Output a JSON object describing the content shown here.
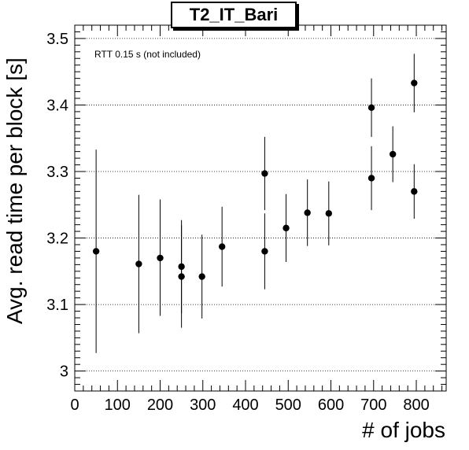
{
  "chart_data": {
    "type": "scatter",
    "title": "T2_IT_Bari",
    "xlabel": "# of jobs",
    "ylabel": "Avg. read time per block [s]",
    "annotation": "RTT 0.15 s (not included)",
    "xlim": [
      0,
      870
    ],
    "ylim": [
      2.97,
      3.52
    ],
    "x_ticks": [
      0,
      100,
      200,
      300,
      400,
      500,
      600,
      700,
      800
    ],
    "x_tick_labels": [
      "0",
      "100",
      "200",
      "300",
      "400",
      "500",
      "600",
      "700",
      "800"
    ],
    "y_ticks": [
      3.0,
      3.1,
      3.2,
      3.3,
      3.4,
      3.5
    ],
    "y_tick_labels": [
      "3",
      "3.1",
      "3.2",
      "3.3",
      "3.4",
      "3.5"
    ],
    "grid": "horizontal-dotted",
    "points": [
      {
        "x": 50,
        "y": 3.18,
        "err_low": 3.027,
        "err_high": 3.333
      },
      {
        "x": 150,
        "y": 3.161,
        "err_low": 3.057,
        "err_high": 3.265
      },
      {
        "x": 200,
        "y": 3.17,
        "err_low": 3.083,
        "err_high": 3.258
      },
      {
        "x": 250,
        "y": 3.157,
        "err_low": 3.087,
        "err_high": 3.227
      },
      {
        "x": 250,
        "y": 3.142,
        "err_low": 3.065,
        "err_high": 3.219
      },
      {
        "x": 298,
        "y": 3.142,
        "err_low": 3.079,
        "err_high": 3.205
      },
      {
        "x": 345,
        "y": 3.187,
        "err_low": 3.127,
        "err_high": 3.247
      },
      {
        "x": 445,
        "y": 3.297,
        "err_low": 3.242,
        "err_high": 3.352
      },
      {
        "x": 445,
        "y": 3.18,
        "err_low": 3.123,
        "err_high": 3.237
      },
      {
        "x": 495,
        "y": 3.215,
        "err_low": 3.164,
        "err_high": 3.266
      },
      {
        "x": 545,
        "y": 3.238,
        "err_low": 3.188,
        "err_high": 3.288
      },
      {
        "x": 595,
        "y": 3.237,
        "err_low": 3.189,
        "err_high": 3.285
      },
      {
        "x": 695,
        "y": 3.396,
        "err_low": 3.352,
        "err_high": 3.44
      },
      {
        "x": 695,
        "y": 3.29,
        "err_low": 3.242,
        "err_high": 3.338
      },
      {
        "x": 745,
        "y": 3.326,
        "err_low": 3.284,
        "err_high": 3.368
      },
      {
        "x": 795,
        "y": 3.433,
        "err_low": 3.389,
        "err_high": 3.477
      },
      {
        "x": 795,
        "y": 3.27,
        "err_low": 3.229,
        "err_high": 3.311
      }
    ],
    "colors": {
      "marker": "#000000",
      "axis": "#000000",
      "grid": "#000000",
      "background": "#ffffff"
    }
  }
}
